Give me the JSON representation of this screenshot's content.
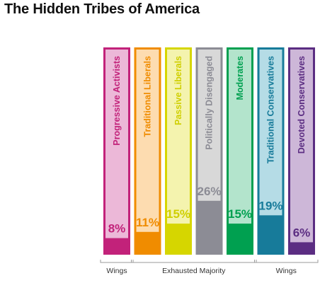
{
  "page": {
    "title": "The Hidden Tribes of America"
  },
  "chart_data": {
    "type": "bar",
    "title": "The Hidden Tribes of America",
    "categories": [
      "Progressive Activists",
      "Traditional Liberals",
      "Passive Liberals",
      "Politically Disengaged",
      "Moderates",
      "Traditional Conservatives",
      "Devoted Conservatives"
    ],
    "values": [
      8,
      11,
      15,
      26,
      15,
      19,
      6
    ],
    "value_labels": [
      "8%",
      "11%",
      "15%",
      "26%",
      "15%",
      "19%",
      "6%"
    ],
    "ylim": [
      0,
      100
    ],
    "colors": {
      "border": [
        "#c2227a",
        "#f08c00",
        "#d6d600",
        "#8c8c95",
        "#00a050",
        "#177b9a",
        "#5b2d82"
      ],
      "fill": [
        "#c2227a",
        "#f08c00",
        "#d6d600",
        "#8c8c95",
        "#00a050",
        "#177b9a",
        "#5b2d82"
      ],
      "background": [
        "#ecb8d8",
        "#fddcb0",
        "#f4f3ae",
        "#d8d8d8",
        "#b3e4cc",
        "#b5dce6",
        "#cdb7d8"
      ],
      "label": [
        "#c2227a",
        "#f08c00",
        "#cfcf00",
        "#8c8c95",
        "#00a050",
        "#177b9a",
        "#5b2d82"
      ]
    },
    "groups": [
      {
        "label": "Wings",
        "from": 0,
        "to": 0
      },
      {
        "label": "Exhausted Majority",
        "from": 1,
        "to": 4
      },
      {
        "label": "Wings",
        "from": 5,
        "to": 6
      }
    ]
  }
}
